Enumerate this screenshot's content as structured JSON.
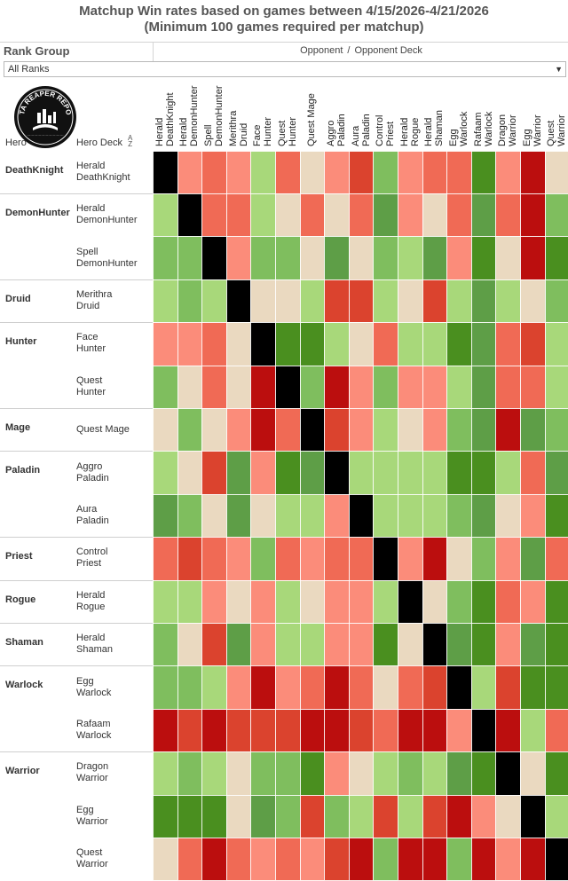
{
  "title": {
    "line1": "Matchup Win rates based on games between 4/15/2026-4/21/2026",
    "line2": "(Minimum 100 games required per matchup)"
  },
  "filter": {
    "label": "Rank Group",
    "selected": "All Ranks"
  },
  "header": {
    "opponent": "Opponent",
    "separator": "/",
    "opponent_deck": "Opponent Deck",
    "hero": "Hero",
    "hero_deck": "Hero Deck"
  },
  "logo": {
    "text": "DATA REAPER REPORT"
  },
  "colors": {
    "black": "#000000",
    "very_favored": "#4a8f1f",
    "favored": "#5e9e47",
    "slightly_favored": "#7fbe5e",
    "barely_favored": "#a8d87a",
    "even": "#ead9c0",
    "barely_unfavored": "#fb8c7a",
    "slightly_unfavored": "#f06a55",
    "unfavored": "#db432e",
    "very_unfavored": "#bb0e0e"
  },
  "chart_data": {
    "type": "heatmap",
    "title": "Matchup Win rates based on games between 4/15/2026-4/21/2026",
    "subtitle": "(Minimum 100 games required per matchup)",
    "x_label": "Opponent / Opponent Deck",
    "columns": [
      "Herald DeathKnight",
      "Herald DemonHunter",
      "Spell DemonHunter",
      "Merithra Druid",
      "Face Hunter",
      "Quest Hunter",
      "Quest Mage",
      "Aggro Paladin",
      "Aura Paladin",
      "Control Priest",
      "Herald Rogue",
      "Herald Shaman",
      "Egg Warlock",
      "Rafaam Warlock",
      "Dragon Warrior",
      "Egg Warrior",
      "Quest Warrior"
    ],
    "groups": [
      {
        "hero": "DeathKnight",
        "rows": [
          {
            "deck": "Herald DeathKnight",
            "cells": [
              "black",
              "barely_unfavored",
              "slightly_unfavored",
              "barely_unfavored",
              "barely_favored",
              "slightly_unfavored",
              "even",
              "barely_unfavored",
              "unfavored",
              "slightly_favored",
              "barely_unfavored",
              "slightly_unfavored",
              "slightly_unfavored",
              "very_favored",
              "barely_unfavored",
              "very_unfavored",
              "even"
            ]
          }
        ]
      },
      {
        "hero": "DemonHunter",
        "rows": [
          {
            "deck": "Herald DemonHunter",
            "cells": [
              "barely_favored",
              "black",
              "slightly_unfavored",
              "slightly_unfavored",
              "barely_favored",
              "even",
              "slightly_unfavored",
              "even",
              "slightly_unfavored",
              "favored",
              "barely_unfavored",
              "even",
              "slightly_unfavored",
              "favored",
              "slightly_unfavored",
              "very_unfavored",
              "slightly_favored"
            ]
          },
          {
            "deck": "Spell DemonHunter",
            "cells": [
              "slightly_favored",
              "slightly_favored",
              "black",
              "barely_unfavored",
              "slightly_favored",
              "slightly_favored",
              "even",
              "favored",
              "even",
              "slightly_favored",
              "barely_favored",
              "favored",
              "barely_unfavored",
              "very_favored",
              "even",
              "very_unfavored",
              "very_favored"
            ]
          }
        ]
      },
      {
        "hero": "Druid",
        "rows": [
          {
            "deck": "Merithra Druid",
            "cells": [
              "barely_favored",
              "slightly_favored",
              "barely_favored",
              "black",
              "even",
              "even",
              "barely_favored",
              "unfavored",
              "unfavored",
              "barely_favored",
              "even",
              "unfavored",
              "barely_favored",
              "favored",
              "barely_favored",
              "even",
              "slightly_favored"
            ]
          }
        ]
      },
      {
        "hero": "Hunter",
        "rows": [
          {
            "deck": "Face Hunter",
            "cells": [
              "barely_unfavored",
              "barely_unfavored",
              "slightly_unfavored",
              "even",
              "black",
              "very_favored",
              "very_favored",
              "barely_favored",
              "even",
              "slightly_unfavored",
              "barely_favored",
              "barely_favored",
              "very_favored",
              "favored",
              "slightly_unfavored",
              "unfavored",
              "barely_favored"
            ]
          },
          {
            "deck": "Quest Hunter",
            "cells": [
              "slightly_favored",
              "even",
              "slightly_unfavored",
              "even",
              "very_unfavored",
              "black",
              "slightly_favored",
              "very_unfavored",
              "barely_unfavored",
              "slightly_favored",
              "barely_unfavored",
              "barely_unfavored",
              "barely_favored",
              "favored",
              "slightly_unfavored",
              "slightly_unfavored",
              "barely_favored"
            ]
          }
        ]
      },
      {
        "hero": "Mage",
        "rows": [
          {
            "deck": "Quest Mage",
            "cells": [
              "even",
              "slightly_favored",
              "even",
              "barely_unfavored",
              "very_unfavored",
              "slightly_unfavored",
              "black",
              "unfavored",
              "barely_unfavored",
              "barely_favored",
              "even",
              "barely_unfavored",
              "slightly_favored",
              "favored",
              "very_unfavored",
              "favored",
              "slightly_favored"
            ]
          }
        ]
      },
      {
        "hero": "Paladin",
        "rows": [
          {
            "deck": "Aggro Paladin",
            "cells": [
              "barely_favored",
              "even",
              "unfavored",
              "favored",
              "barely_unfavored",
              "very_favored",
              "favored",
              "black",
              "barely_favored",
              "barely_favored",
              "barely_favored",
              "barely_favored",
              "very_favored",
              "very_favored",
              "barely_favored",
              "slightly_unfavored",
              "favored"
            ]
          },
          {
            "deck": "Aura Paladin",
            "cells": [
              "favored",
              "slightly_favored",
              "even",
              "favored",
              "even",
              "barely_favored",
              "barely_favored",
              "barely_unfavored",
              "black",
              "barely_favored",
              "barely_favored",
              "barely_favored",
              "slightly_favored",
              "favored",
              "even",
              "barely_unfavored",
              "very_favored"
            ]
          }
        ]
      },
      {
        "hero": "Priest",
        "rows": [
          {
            "deck": "Control Priest",
            "cells": [
              "slightly_unfavored",
              "unfavored",
              "slightly_unfavored",
              "barely_unfavored",
              "slightly_favored",
              "slightly_unfavored",
              "barely_unfavored",
              "slightly_unfavored",
              "slightly_unfavored",
              "black",
              "barely_unfavored",
              "very_unfavored",
              "even",
              "slightly_favored",
              "barely_unfavored",
              "favored",
              "slightly_unfavored"
            ]
          }
        ]
      },
      {
        "hero": "Rogue",
        "rows": [
          {
            "deck": "Herald Rogue",
            "cells": [
              "barely_favored",
              "barely_favored",
              "barely_unfavored",
              "even",
              "barely_unfavored",
              "barely_favored",
              "even",
              "barely_unfavored",
              "barely_unfavored",
              "barely_favored",
              "black",
              "even",
              "slightly_favored",
              "very_favored",
              "slightly_unfavored",
              "barely_unfavored",
              "very_favored"
            ]
          }
        ]
      },
      {
        "hero": "Shaman",
        "rows": [
          {
            "deck": "Herald Shaman",
            "cells": [
              "slightly_favored",
              "even",
              "unfavored",
              "favored",
              "barely_unfavored",
              "barely_favored",
              "barely_favored",
              "barely_unfavored",
              "barely_unfavored",
              "very_favored",
              "even",
              "black",
              "favored",
              "very_favored",
              "barely_unfavored",
              "favored",
              "very_favored"
            ]
          }
        ]
      },
      {
        "hero": "Warlock",
        "rows": [
          {
            "deck": "Egg Warlock",
            "cells": [
              "slightly_favored",
              "slightly_favored",
              "barely_favored",
              "barely_unfavored",
              "very_unfavored",
              "barely_unfavored",
              "slightly_unfavored",
              "very_unfavored",
              "slightly_unfavored",
              "even",
              "slightly_unfavored",
              "unfavored",
              "black",
              "barely_favored",
              "unfavored",
              "very_favored",
              "very_favored"
            ]
          },
          {
            "deck": "Rafaam Warlock",
            "cells": [
              "very_unfavored",
              "unfavored",
              "very_unfavored",
              "unfavored",
              "unfavored",
              "unfavored",
              "very_unfavored",
              "very_unfavored",
              "unfavored",
              "slightly_unfavored",
              "very_unfavored",
              "very_unfavored",
              "barely_unfavored",
              "black",
              "very_unfavored",
              "barely_favored",
              "slightly_unfavored"
            ]
          }
        ]
      },
      {
        "hero": "Warrior",
        "rows": [
          {
            "deck": "Dragon Warrior",
            "cells": [
              "barely_favored",
              "slightly_favored",
              "barely_favored",
              "even",
              "slightly_favored",
              "slightly_favored",
              "very_favored",
              "barely_unfavored",
              "even",
              "barely_favored",
              "slightly_favored",
              "barely_favored",
              "favored",
              "very_favored",
              "black",
              "even",
              "very_favored"
            ]
          },
          {
            "deck": "Egg Warrior",
            "cells": [
              "very_favored",
              "very_favored",
              "very_favored",
              "even",
              "favored",
              "slightly_favored",
              "unfavored",
              "slightly_favored",
              "barely_favored",
              "unfavored",
              "barely_favored",
              "unfavored",
              "very_unfavored",
              "barely_unfavored",
              "even",
              "black",
              "barely_favored"
            ]
          },
          {
            "deck": "Quest Warrior",
            "cells": [
              "even",
              "slightly_unfavored",
              "very_unfavored",
              "slightly_unfavored",
              "barely_unfavored",
              "slightly_unfavored",
              "barely_unfavored",
              "unfavored",
              "very_unfavored",
              "slightly_favored",
              "very_unfavored",
              "very_unfavored",
              "slightly_favored",
              "very_unfavored",
              "barely_unfavored",
              "very_unfavored",
              "black"
            ]
          }
        ]
      }
    ]
  }
}
